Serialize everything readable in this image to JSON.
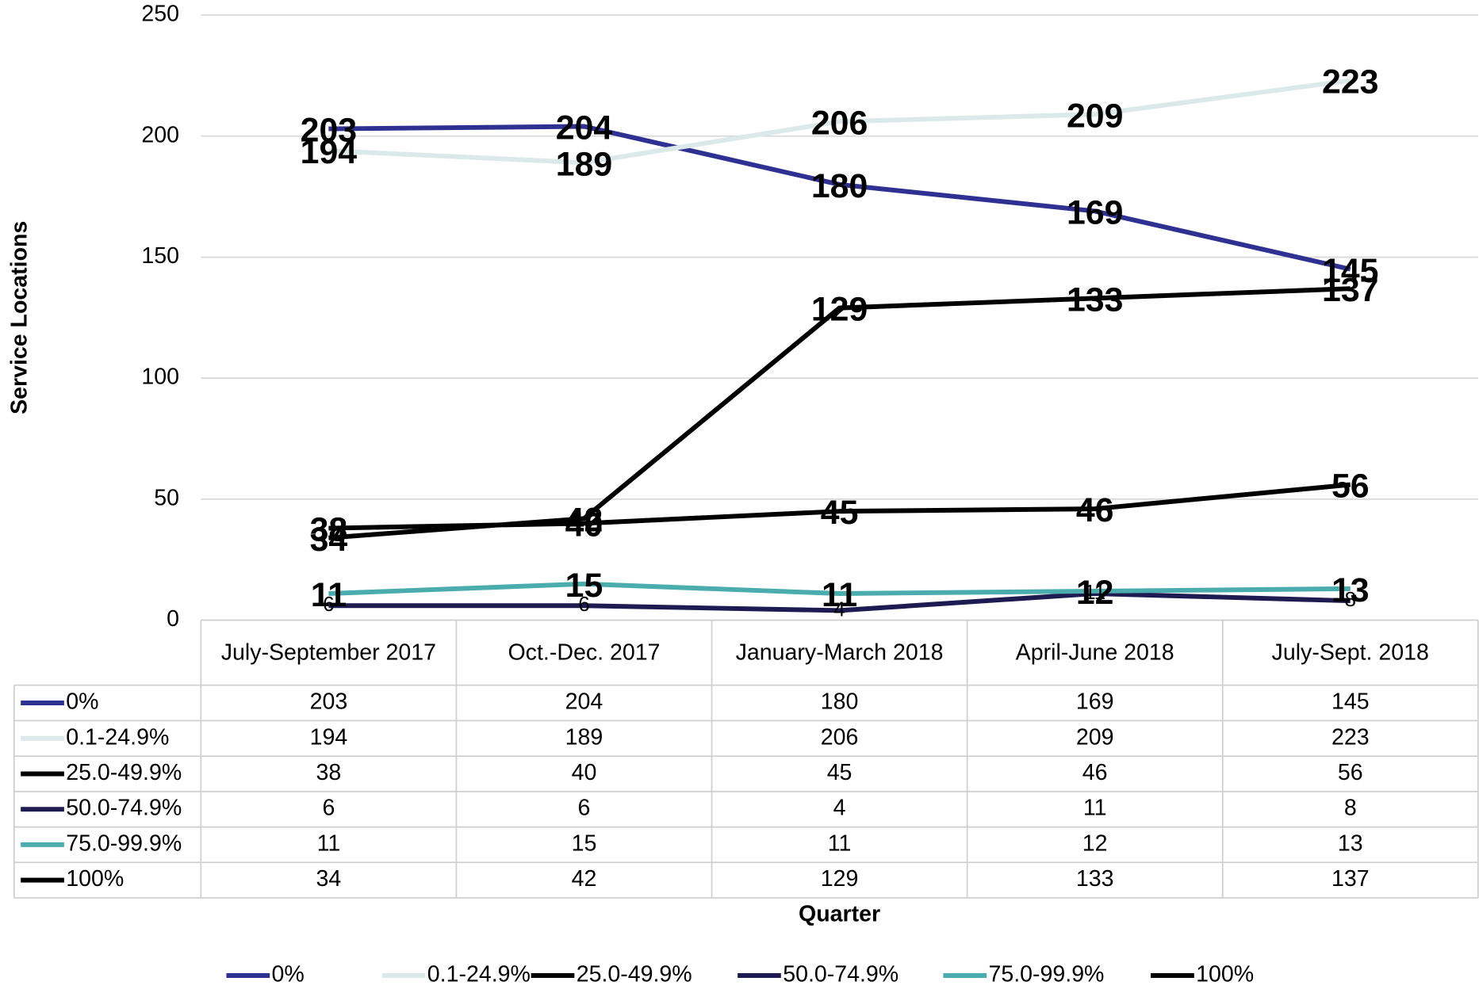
{
  "chart_data": {
    "type": "line",
    "categories": [
      "July-September 2017",
      "Oct.-Dec. 2017",
      "January-March 2018",
      "April-June 2018",
      "July-Sept. 2018"
    ],
    "series": [
      {
        "name": "0%",
        "color": "#2e3192",
        "values": [
          203,
          204,
          180,
          169,
          145
        ]
      },
      {
        "name": "0.1-24.9%",
        "color": "#dbe9ea",
        "values": [
          194,
          189,
          206,
          209,
          223
        ]
      },
      {
        "name": "25.0-49.9%",
        "color": "#000000",
        "values": [
          38,
          40,
          45,
          46,
          56
        ]
      },
      {
        "name": "50.0-74.9%",
        "color": "#1e1b52",
        "values": [
          6,
          6,
          4,
          11,
          8
        ]
      },
      {
        "name": "75.0-99.9%",
        "color": "#4bacad",
        "values": [
          11,
          15,
          11,
          12,
          13
        ]
      },
      {
        "name": "100%",
        "color": "#000000",
        "values": [
          34,
          42,
          129,
          133,
          137
        ]
      }
    ],
    "y_label": "Service Locations",
    "x_label": "Quarter",
    "ylim": [
      0,
      250
    ],
    "yticks": [
      0,
      50,
      100,
      150,
      200,
      250
    ],
    "grid": true
  }
}
